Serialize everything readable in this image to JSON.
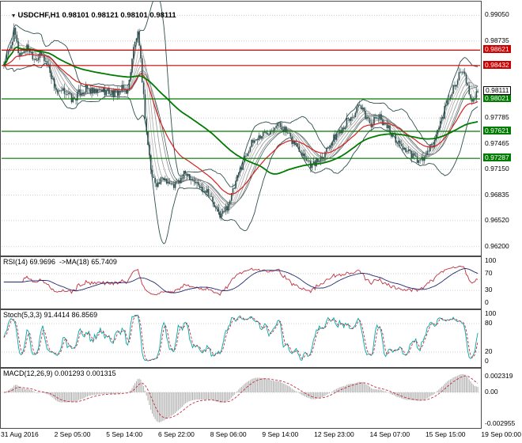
{
  "window": {
    "title": "USDCHF,H1 0.98101 0.98121 0.98101 0.98111"
  },
  "colors": {
    "candle": "#2F4F4F",
    "bollinger": "#2F4F4F",
    "ma_fan": [
      "#c6c6c6",
      "#b6b6b6",
      "#a6a6a6",
      "#969696",
      "#868686"
    ],
    "ma_red": "#d42020",
    "ma_green": "#007a00",
    "resistance": "#cc0000",
    "support": "#007a00",
    "grid": "#cdcdcd",
    "rsi": "#c03040",
    "rsi_ma": "#202a70",
    "stoch": "#00a8a8",
    "stoch_signal": "#c03040",
    "macd_hist": "#ababab",
    "macd_signal": "#c03040"
  },
  "chart_data": {
    "type": "candlestick",
    "symbol": "USDCHF",
    "timeframe": "H1",
    "title": "USDCHF,H1 0.98101 0.98121 0.98101 0.98111",
    "ohlc_header": {
      "open": "0.98101",
      "high": "0.98121",
      "low": "0.98101",
      "close": "0.98111"
    },
    "x_labels": [
      "31 Aug 2016",
      "2 Sep 05:00",
      "5 Sep 14:00",
      "6 Sep 22:00",
      "8 Sep 06:00",
      "9 Sep 14:00",
      "12 Sep 23:00",
      "14 Sep 07:00",
      "15 Sep 15:00",
      "19 Sep 00:00"
    ],
    "main": {
      "ylim": [
        0.9609,
        0.9922
      ],
      "num_candles": 330,
      "price_path_anchors": [
        [
          0.0,
          0.9845
        ],
        [
          0.012,
          0.9862
        ],
        [
          0.022,
          0.9886
        ],
        [
          0.032,
          0.9856
        ],
        [
          0.05,
          0.9866
        ],
        [
          0.065,
          0.9852
        ],
        [
          0.08,
          0.9856
        ],
        [
          0.095,
          0.9842
        ],
        [
          0.105,
          0.982
        ],
        [
          0.115,
          0.9808
        ],
        [
          0.13,
          0.9812
        ],
        [
          0.145,
          0.98
        ],
        [
          0.16,
          0.981
        ],
        [
          0.175,
          0.9815
        ],
        [
          0.19,
          0.9809
        ],
        [
          0.205,
          0.9813
        ],
        [
          0.22,
          0.9811
        ],
        [
          0.235,
          0.9808
        ],
        [
          0.25,
          0.9814
        ],
        [
          0.262,
          0.9812
        ],
        [
          0.272,
          0.986
        ],
        [
          0.282,
          0.9884
        ],
        [
          0.29,
          0.984
        ],
        [
          0.3,
          0.9766
        ],
        [
          0.312,
          0.9706
        ],
        [
          0.325,
          0.9697
        ],
        [
          0.34,
          0.9705
        ],
        [
          0.355,
          0.9694
        ],
        [
          0.37,
          0.97
        ],
        [
          0.385,
          0.9712
        ],
        [
          0.4,
          0.9702
        ],
        [
          0.415,
          0.9692
        ],
        [
          0.43,
          0.969
        ],
        [
          0.445,
          0.9668
        ],
        [
          0.458,
          0.9658
        ],
        [
          0.47,
          0.9668
        ],
        [
          0.485,
          0.969
        ],
        [
          0.5,
          0.9718
        ],
        [
          0.515,
          0.974
        ],
        [
          0.53,
          0.9752
        ],
        [
          0.545,
          0.9758
        ],
        [
          0.56,
          0.9764
        ],
        [
          0.575,
          0.9772
        ],
        [
          0.59,
          0.9766
        ],
        [
          0.605,
          0.9752
        ],
        [
          0.62,
          0.9744
        ],
        [
          0.635,
          0.9732
        ],
        [
          0.65,
          0.972
        ],
        [
          0.663,
          0.9726
        ],
        [
          0.675,
          0.9736
        ],
        [
          0.69,
          0.9748
        ],
        [
          0.705,
          0.976
        ],
        [
          0.72,
          0.9772
        ],
        [
          0.735,
          0.978
        ],
        [
          0.75,
          0.9792
        ],
        [
          0.762,
          0.9782
        ],
        [
          0.775,
          0.9772
        ],
        [
          0.79,
          0.978
        ],
        [
          0.805,
          0.9772
        ],
        [
          0.82,
          0.9758
        ],
        [
          0.835,
          0.9746
        ],
        [
          0.85,
          0.9738
        ],
        [
          0.865,
          0.973
        ],
        [
          0.878,
          0.9724
        ],
        [
          0.89,
          0.9732
        ],
        [
          0.905,
          0.9744
        ],
        [
          0.92,
          0.9772
        ],
        [
          0.935,
          0.9796
        ],
        [
          0.95,
          0.982
        ],
        [
          0.965,
          0.9836
        ],
        [
          0.975,
          0.9826
        ],
        [
          0.985,
          0.9798
        ],
        [
          0.993,
          0.9806
        ],
        [
          1.0,
          0.98111
        ]
      ],
      "axis_ticks": [
        {
          "v": 0.9905,
          "label": "0.99050"
        },
        {
          "v": 0.98735,
          "label": "0.98735"
        },
        {
          "v": 0.97785,
          "label": "0.97785"
        },
        {
          "v": 0.97465,
          "label": "0.97465"
        },
        {
          "v": 0.9715,
          "label": "0.97150"
        },
        {
          "v": 0.96835,
          "label": "0.96835"
        },
        {
          "v": 0.9652,
          "label": "0.96520"
        },
        {
          "v": 0.962,
          "label": "0.96200"
        }
      ],
      "hlines": [
        {
          "v": 0.98621,
          "label": "0.98621",
          "color": "#cc0000",
          "type": "resistance"
        },
        {
          "v": 0.98432,
          "label": "0.98432",
          "color": "#cc0000",
          "type": "resistance"
        },
        {
          "v": 0.98021,
          "label": "0.98021",
          "color": "#007a00",
          "type": "support"
        },
        {
          "v": 0.97621,
          "label": "0.97621",
          "color": "#007a00",
          "type": "support"
        },
        {
          "v": 0.97287,
          "label": "0.97287",
          "color": "#007a00",
          "type": "support"
        }
      ],
      "current_price": {
        "v": 0.98111,
        "label": "0.98111"
      },
      "overlays": {
        "bollinger_period": 20,
        "ma_fan_periods": [
          4,
          7,
          10,
          14,
          18
        ],
        "red_ma_period": 34,
        "green_ma_period": 90
      }
    },
    "rsi": {
      "header": "RSI(14) 69.9696  ->MA(18) 65.7409",
      "period": 14,
      "ma_period": 18,
      "ticks": [
        100,
        70,
        30,
        0
      ],
      "last": 69.9696,
      "ma_last": 65.7409
    },
    "stoch": {
      "header": "Stoch(5,3,3) 91.4414 86.8569",
      "ticks": [
        100,
        80,
        20,
        0
      ],
      "last": 91.4414,
      "signal_last": 86.8569
    },
    "macd": {
      "header": "MACD(12,26,9) 0.001293 0.001315",
      "ticks": [
        "0.002319",
        "0.00",
        "-0.002955"
      ],
      "last": 0.001293,
      "signal_last": 0.001315
    }
  }
}
